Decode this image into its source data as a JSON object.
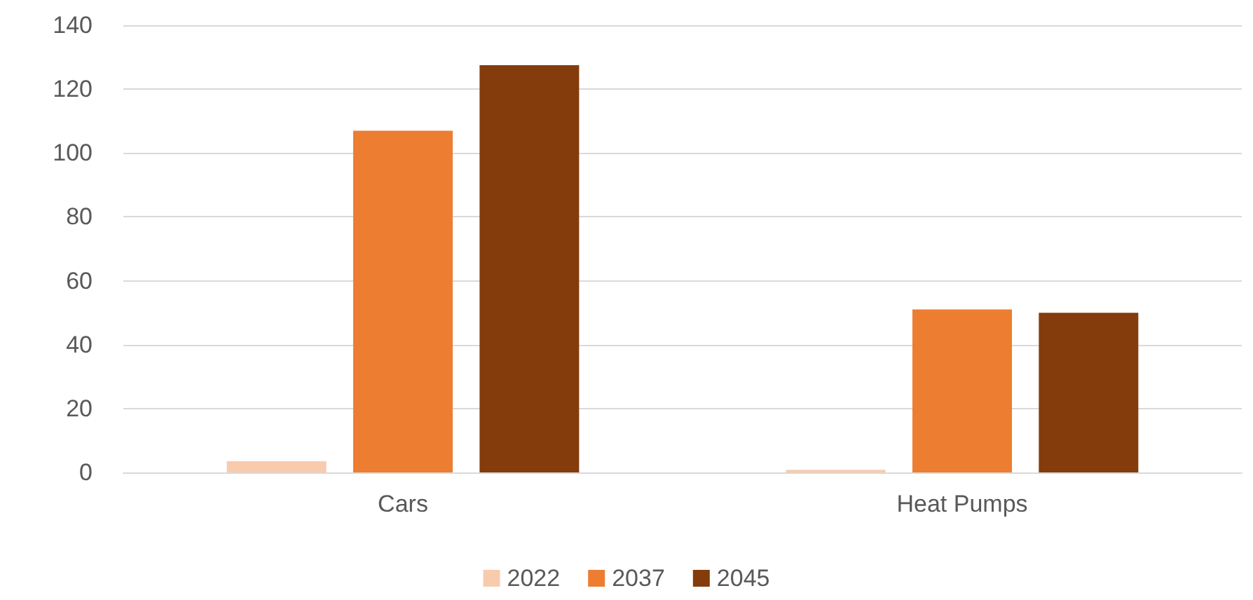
{
  "chart_data": {
    "type": "bar",
    "categories": [
      "Cars",
      "Heat Pumps"
    ],
    "series": [
      {
        "name": "2022",
        "color": "#f8cbad",
        "values": [
          3.5,
          0.8
        ]
      },
      {
        "name": "2037",
        "color": "#ed7d31",
        "values": [
          107,
          51
        ]
      },
      {
        "name": "2045",
        "color": "#843c0c",
        "values": [
          127.5,
          50
        ]
      }
    ],
    "ylim": [
      0,
      140
    ],
    "yticks": [
      0,
      20,
      40,
      60,
      80,
      100,
      120,
      140
    ],
    "grid": "y",
    "legend": "bottom"
  }
}
